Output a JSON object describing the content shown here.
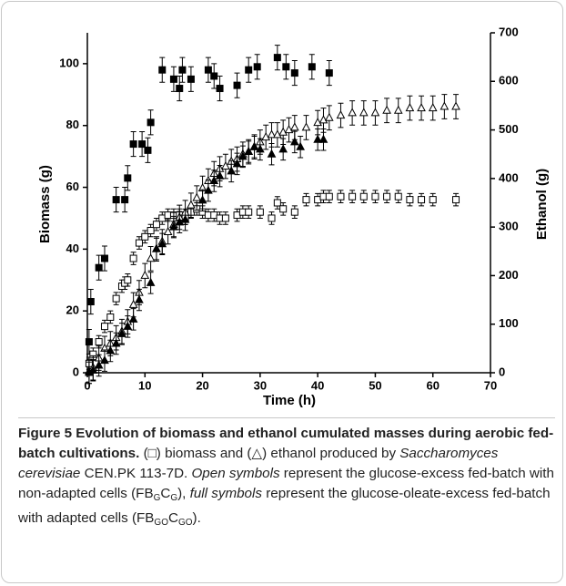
{
  "chart_data": {
    "type": "scatter",
    "ylabel": "Biomass (g)",
    "y2label": "Ethanol (g)",
    "xlabel": "Time (h)",
    "xlim": [
      0,
      70
    ],
    "xticks": [
      0,
      10,
      20,
      30,
      40,
      50,
      60,
      70
    ],
    "ylim": [
      0,
      110
    ],
    "yticks": [
      0,
      20,
      40,
      60,
      80,
      100
    ],
    "y2lim": [
      0,
      700
    ],
    "y2ticks": [
      0,
      100,
      200,
      300,
      400,
      500,
      600,
      700
    ],
    "series": [
      {
        "marker": "square",
        "filled": true,
        "color": "#000000",
        "axis": "y",
        "error": 4,
        "x": [
          0.3,
          0.6,
          2,
          3,
          5,
          6.5,
          7,
          8,
          9.5,
          10.5,
          11,
          13,
          15,
          16,
          16.5,
          18,
          21,
          22,
          23,
          26,
          28,
          29.5,
          33,
          34.5,
          36,
          39,
          42
        ],
        "values": [
          10,
          23,
          34,
          37,
          56,
          56,
          63,
          74,
          74,
          72,
          81,
          98,
          95,
          92,
          98,
          95,
          98,
          96,
          92,
          93,
          98,
          99,
          102,
          99,
          97,
          99,
          97
        ]
      },
      {
        "marker": "square",
        "filled": false,
        "color": "#000000",
        "axis": "y",
        "error": 2,
        "x": [
          0.3,
          1,
          2,
          3,
          4,
          5,
          6,
          6.5,
          7,
          8,
          9,
          10,
          11,
          12,
          13,
          14,
          15,
          16,
          17,
          18,
          19,
          20,
          21,
          22,
          23,
          24,
          26,
          27,
          28,
          30,
          32,
          33,
          34,
          36,
          38,
          40,
          41,
          42,
          44,
          46,
          48,
          50,
          52,
          54,
          56,
          58,
          60,
          64
        ],
        "values": [
          3,
          6,
          10,
          15,
          18,
          24,
          28,
          29,
          30,
          37,
          42,
          44,
          46,
          48,
          50,
          51,
          51,
          51,
          50,
          52,
          53,
          52,
          51,
          51,
          50,
          50,
          51,
          52,
          52,
          52,
          50,
          55,
          53,
          52,
          56,
          56,
          57,
          57,
          57,
          57,
          57,
          57,
          57,
          57,
          56,
          56,
          56,
          56
        ]
      },
      {
        "marker": "triangle",
        "filled": false,
        "color": "#000000",
        "axis": "y2",
        "error": 25,
        "x": [
          0.3,
          1,
          2,
          3,
          4,
          5,
          6,
          7,
          8,
          9,
          10,
          11,
          12,
          13,
          14,
          15,
          16,
          17,
          18,
          19,
          20,
          21,
          22,
          23,
          24,
          25,
          26,
          27,
          28,
          29,
          30,
          31,
          32,
          33,
          34,
          35,
          36,
          38,
          40,
          41,
          42,
          44,
          46,
          48,
          50,
          52,
          54,
          56,
          58,
          60,
          62,
          64
        ],
        "values": [
          3,
          10,
          30,
          50,
          60,
          72,
          85,
          105,
          140,
          165,
          200,
          235,
          255,
          270,
          290,
          305,
          320,
          330,
          345,
          360,
          380,
          395,
          410,
          420,
          425,
          435,
          440,
          450,
          455,
          465,
          475,
          485,
          490,
          490,
          495,
          500,
          505,
          505,
          515,
          520,
          525,
          530,
          535,
          535,
          535,
          540,
          540,
          545,
          545,
          545,
          548,
          548
        ]
      },
      {
        "marker": "triangle",
        "filled": true,
        "color": "#000000",
        "axis": "y2",
        "error": 22,
        "x": [
          0.3,
          1,
          2,
          3,
          4,
          5,
          6,
          7,
          8,
          9,
          11,
          12,
          13,
          15,
          16,
          17,
          20,
          21,
          22,
          23,
          25,
          26,
          27,
          28,
          29,
          30,
          32,
          34,
          36,
          37,
          40,
          41
        ],
        "values": [
          0,
          5,
          15,
          25,
          45,
          60,
          80,
          95,
          110,
          150,
          185,
          255,
          265,
          300,
          310,
          315,
          355,
          375,
          395,
          405,
          415,
          430,
          445,
          455,
          465,
          460,
          450,
          460,
          475,
          465,
          480,
          480
        ]
      }
    ]
  },
  "caption": {
    "title": "Figure 5 Evolution of biomass and ethanol cumulated masses during aerobic fed-batch cultivations.",
    "segments": [
      {
        "text": " (□) biomass and (△) ethanol produced by "
      },
      {
        "text": "Saccharomyces cerevisiae",
        "style": "italic"
      },
      {
        "text": " CEN.PK 113-7D. "
      },
      {
        "text": "Open symbols",
        "style": "italic"
      },
      {
        "text": " represent the glucose-excess fed-batch with non-adapted cells (FB"
      },
      {
        "text": "G",
        "style": "sub"
      },
      {
        "text": "C"
      },
      {
        "text": "G",
        "style": "sub"
      },
      {
        "text": "), "
      },
      {
        "text": "full symbols",
        "style": "italic"
      },
      {
        "text": " represent the glucose-oleate-excess fed-batch with adapted cells (FB"
      },
      {
        "text": "GO",
        "style": "sub"
      },
      {
        "text": "C"
      },
      {
        "text": "GO",
        "style": "sub"
      },
      {
        "text": ")."
      }
    ]
  }
}
